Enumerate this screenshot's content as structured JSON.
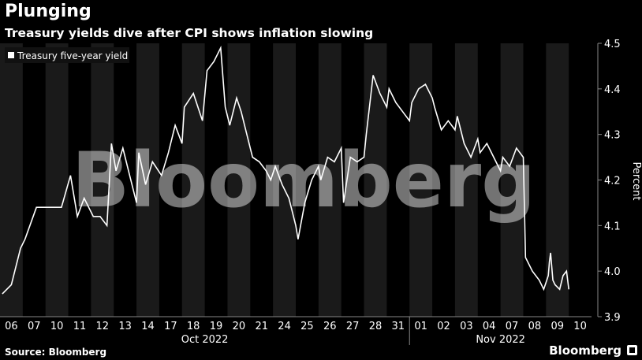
{
  "header": {
    "title": "Plunging",
    "subtitle": "Treasury yields dive after CPI shows inflation slowing"
  },
  "footer": {
    "source": "Source: Bloomberg",
    "brand": "Bloomberg"
  },
  "watermark": "Bloomberg",
  "colors": {
    "background": "#000000",
    "line": "#ffffff",
    "band": "#1a1a1a"
  },
  "chart_data": {
    "type": "line",
    "title": "Plunging",
    "subtitle": "Treasury yields dive after CPI shows inflation slowing",
    "ylabel": "Percent",
    "ylim": [
      3.9,
      4.5
    ],
    "yticks": [
      3.9,
      4.0,
      4.1,
      4.2,
      4.3,
      4.4,
      4.5
    ],
    "legend": {
      "position": "top-left",
      "entries": [
        "Treasury five-year yield"
      ]
    },
    "categories": [
      "06",
      "07",
      "10",
      "11",
      "12",
      "13",
      "14",
      "17",
      "18",
      "19",
      "20",
      "21",
      "24",
      "25",
      "26",
      "27",
      "28",
      "31",
      "01",
      "02",
      "03",
      "04",
      "07",
      "08",
      "09",
      "10"
    ],
    "month_labels": [
      {
        "label": "Oct 2022",
        "first": "06",
        "last": "31"
      },
      {
        "label": "Nov 2022",
        "first": "01",
        "last": "10"
      }
    ],
    "series": [
      {
        "name": "Treasury five-year yield",
        "x": [
          0,
          0.4,
          0.8,
          1.0,
          1.5,
          2.0,
          2.6,
          3.0,
          3.3,
          3.6,
          4.0,
          4.3,
          4.6,
          4.8,
          5.0,
          5.3,
          5.6,
          5.9,
          6.0,
          6.3,
          6.6,
          7.0,
          7.3,
          7.6,
          7.9,
          8.0,
          8.4,
          8.8,
          9.0,
          9.3,
          9.6,
          9.8,
          10.0,
          10.3,
          10.5,
          10.8,
          11.0,
          11.3,
          11.6,
          11.8,
          12.0,
          12.3,
          12.6,
          12.9,
          13.0,
          13.3,
          13.6,
          13.9,
          14.0,
          14.3,
          14.6,
          14.9,
          15.0,
          15.3,
          15.6,
          15.9,
          16.0,
          16.3,
          16.6,
          16.9,
          17.0,
          17.3,
          17.6,
          17.9,
          18.0,
          18.3,
          18.6,
          18.9,
          19.0,
          19.3,
          19.6,
          19.9,
          20.0,
          20.3,
          20.6,
          20.9,
          21.0,
          21.3,
          21.6,
          21.9,
          22.0,
          22.3,
          22.6,
          22.9,
          23.0,
          23.3,
          23.6,
          23.8,
          24.0,
          24.05,
          24.1,
          24.2,
          24.3,
          24.5,
          24.65,
          24.8,
          24.9
        ],
        "values": [
          3.95,
          3.97,
          4.05,
          4.07,
          4.14,
          4.14,
          4.14,
          4.21,
          4.12,
          4.16,
          4.12,
          4.12,
          4.1,
          4.28,
          4.22,
          4.27,
          4.21,
          4.15,
          4.26,
          4.19,
          4.24,
          4.21,
          4.26,
          4.32,
          4.28,
          4.36,
          4.39,
          4.33,
          4.44,
          4.46,
          4.49,
          4.36,
          4.32,
          4.38,
          4.35,
          4.29,
          4.25,
          4.24,
          4.22,
          4.2,
          4.23,
          4.19,
          4.16,
          4.1,
          4.07,
          4.15,
          4.2,
          4.23,
          4.2,
          4.25,
          4.24,
          4.27,
          4.15,
          4.25,
          4.24,
          4.25,
          4.3,
          4.43,
          4.39,
          4.36,
          4.4,
          4.37,
          4.35,
          4.33,
          4.37,
          4.4,
          4.41,
          4.38,
          4.36,
          4.31,
          4.33,
          4.31,
          4.34,
          4.28,
          4.25,
          4.29,
          4.26,
          4.28,
          4.25,
          4.22,
          4.25,
          4.23,
          4.27,
          4.25,
          4.03,
          4.0,
          3.98,
          3.96,
          3.99,
          4.02,
          4.04,
          3.98,
          3.97,
          3.96,
          3.99,
          4.0,
          3.96
        ]
      }
    ]
  }
}
